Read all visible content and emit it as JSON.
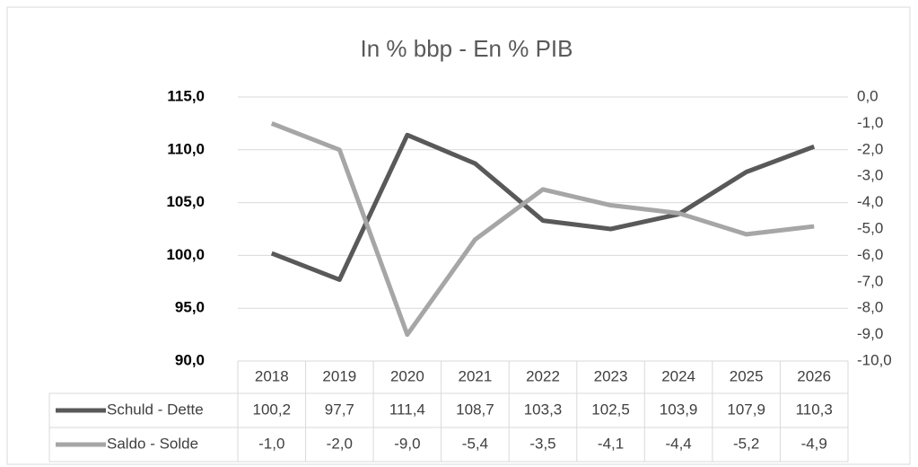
{
  "chart_data": {
    "type": "line",
    "title": "In % bbp - En % PIB",
    "categories": [
      "2018",
      "2019",
      "2020",
      "2021",
      "2022",
      "2023",
      "2024",
      "2025",
      "2026"
    ],
    "series": [
      {
        "name": "Schuld - Dette",
        "color": "#595959",
        "axis": "y",
        "values": [
          100.2,
          97.7,
          111.4,
          108.7,
          103.3,
          102.5,
          103.9,
          107.9,
          110.3
        ],
        "value_labels": [
          "100,2",
          "97,7",
          "111,4",
          "108,7",
          "103,3",
          "102,5",
          "103,9",
          "107,9",
          "110,3"
        ]
      },
      {
        "name": "Saldo - Solde",
        "color": "#a6a6a6",
        "axis": "y2",
        "values": [
          -1.0,
          -2.0,
          -9.0,
          -5.4,
          -3.5,
          -4.1,
          -4.4,
          -5.2,
          -4.9
        ],
        "value_labels": [
          "-1,0",
          "-2,0",
          "-9,0",
          "-5,4",
          "-3,5",
          "-4,1",
          "-4,4",
          "-5,2",
          "-4,9"
        ]
      }
    ],
    "ylim": [
      90,
      115
    ],
    "yticks": [
      {
        "value": 90,
        "label": "90,0"
      },
      {
        "value": 95,
        "label": "95,0"
      },
      {
        "value": 100,
        "label": "100,0"
      },
      {
        "value": 105,
        "label": "105,0"
      },
      {
        "value": 110,
        "label": "110,0"
      },
      {
        "value": 115,
        "label": "115,0"
      }
    ],
    "y2lim": [
      -10,
      0
    ],
    "y2ticks": [
      {
        "value": 0,
        "label": "0,0"
      },
      {
        "value": -1,
        "label": "-1,0"
      },
      {
        "value": -2,
        "label": "-2,0"
      },
      {
        "value": -3,
        "label": "-3,0"
      },
      {
        "value": -4,
        "label": "-4,0"
      },
      {
        "value": -5,
        "label": "-5,0"
      },
      {
        "value": -6,
        "label": "-6,0"
      },
      {
        "value": -7,
        "label": "-7,0"
      },
      {
        "value": -8,
        "label": "-8,0"
      },
      {
        "value": -9,
        "label": "-9,0"
      },
      {
        "value": -10,
        "label": "-10,0"
      }
    ],
    "grid": true
  }
}
